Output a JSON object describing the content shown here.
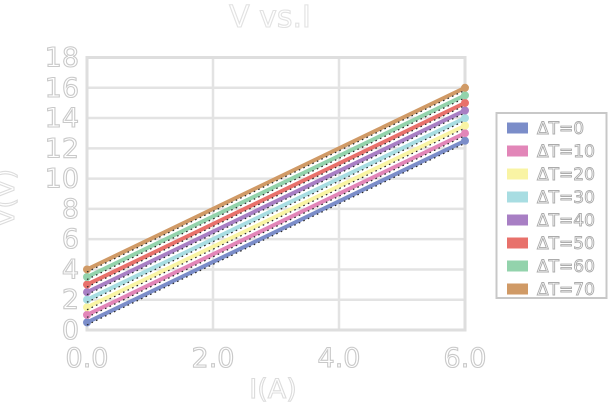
{
  "figure": {
    "background": "#ffffff"
  },
  "chart_data": {
    "type": "line",
    "title": "V vs.I",
    "xlabel": "I(A)",
    "ylabel": "V(V)",
    "xlim": [
      0,
      6
    ],
    "ylim": [
      0,
      18
    ],
    "x": [
      0,
      6
    ],
    "xticks": {
      "values": [
        0,
        2,
        4,
        6
      ],
      "labels": [
        "0.0",
        "2.0",
        "4.0",
        "6.0"
      ]
    },
    "yticks": {
      "values": [
        0,
        2,
        4,
        6,
        8,
        10,
        12,
        14,
        16,
        18
      ],
      "labels": [
        "0",
        "2",
        "4",
        "6",
        "8",
        "10",
        "12",
        "14",
        "16",
        "18"
      ]
    },
    "grid": true,
    "legend": {
      "position": "right",
      "border_color": "#c8c8c8",
      "background": "#ffffff"
    },
    "series": [
      {
        "name": "ΔT=0",
        "color": "#7b8dc9",
        "values": [
          0.5,
          12.5
        ]
      },
      {
        "name": "ΔT=10",
        "color": "#e286b8",
        "values": [
          1.0,
          13.0
        ]
      },
      {
        "name": "ΔT=20",
        "color": "#f9f4a4",
        "values": [
          1.5,
          13.5
        ]
      },
      {
        "name": "ΔT=30",
        "color": "#a8dde2",
        "values": [
          2.0,
          14.0
        ]
      },
      {
        "name": "ΔT=40",
        "color": "#a87fc4",
        "values": [
          2.5,
          14.5
        ]
      },
      {
        "name": "ΔT=50",
        "color": "#e8716b",
        "values": [
          3.0,
          15.0
        ]
      },
      {
        "name": "ΔT=60",
        "color": "#93d3ac",
        "values": [
          3.5,
          15.5
        ]
      },
      {
        "name": "ΔT=70",
        "color": "#d09a66",
        "values": [
          4.0,
          16.0
        ]
      }
    ],
    "fit_lines": {
      "present": true,
      "color": "#2a2a2a",
      "style": "dotted"
    },
    "styles": {
      "grid_color": "#e3e3e3",
      "frame_color": "#dedede",
      "marker": "circle",
      "text_outline": true
    }
  }
}
